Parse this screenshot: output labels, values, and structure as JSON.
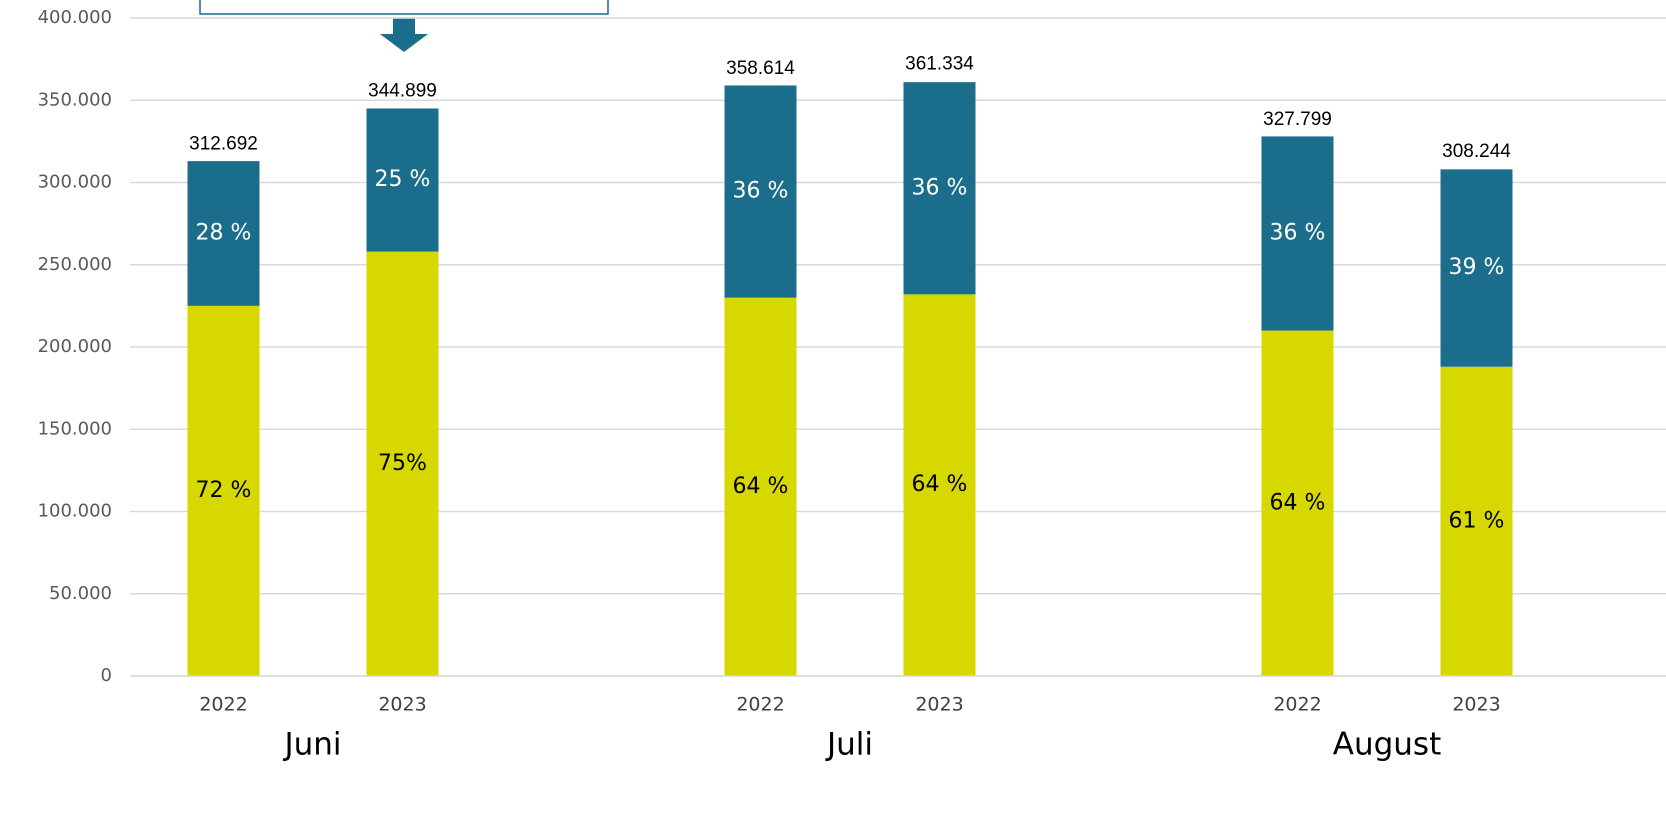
{
  "chart_data": {
    "type": "stacked-bar",
    "categories": [
      "2022",
      "2023",
      "2022",
      "2023",
      "2022",
      "2023"
    ],
    "groups": [
      "Juni",
      "Juli",
      "August"
    ],
    "series": [
      {
        "color": "#d6d800",
        "values": [
          225000,
          258000,
          230000,
          232000,
          210000,
          188000
        ],
        "value_labels": [
          "72 %",
          "75%",
          "64 %",
          "64 %",
          "64 %",
          "61 %"
        ]
      },
      {
        "color": "#1b6d8c",
        "values": [
          88000,
          87000,
          129000,
          129000,
          118000,
          120000
        ],
        "value_labels": [
          "28 %",
          "25 %",
          "36 %",
          "36 %",
          "36 %",
          "39 %"
        ]
      }
    ],
    "totals": {
      "values": [
        312692,
        344899,
        358614,
        361334,
        327799,
        308244
      ],
      "value_labels": [
        "312.692",
        "344.899",
        "358.614",
        "361.334",
        "327.799",
        "308.244"
      ]
    },
    "ylim": [
      0,
      400000
    ],
    "yticks": [
      0,
      {
        "value": 50000,
        "label": "50.000"
      },
      {
        "value": 100000,
        "label": "100.000"
      },
      {
        "value": 150000,
        "label": "150.000"
      },
      {
        "value": 200000,
        "label": "200.000"
      },
      {
        "value": 250000,
        "label": "250.000"
      },
      {
        "value": 300000,
        "label": "300.000"
      },
      {
        "value": 350000,
        "label": "350.000"
      },
      {
        "value": 400000,
        "label": "400.000"
      }
    ],
    "grid": true
  }
}
